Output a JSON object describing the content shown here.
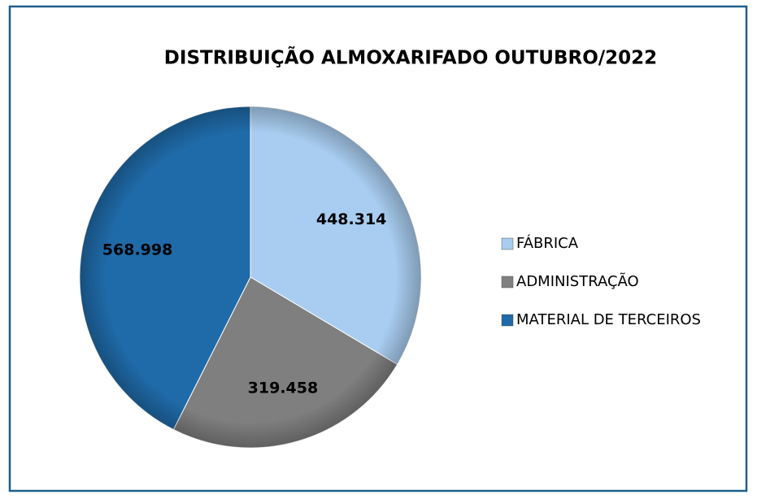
{
  "chart_data": {
    "type": "pie",
    "title": "DISTRIBUIÇÃO ALMOXARIFADO OUTUBRO/2022",
    "categories": [
      "FÁBRICA",
      "ADMINISTRAÇÃO",
      "MATERIAL DE TERCEIROS"
    ],
    "values": [
      448314,
      319458,
      568998
    ],
    "value_labels": [
      "448.314",
      "319.458",
      "568.998"
    ],
    "colors": [
      "#a8cdf0",
      "#7f7f7f",
      "#1f6aa8"
    ],
    "legend": "right"
  }
}
